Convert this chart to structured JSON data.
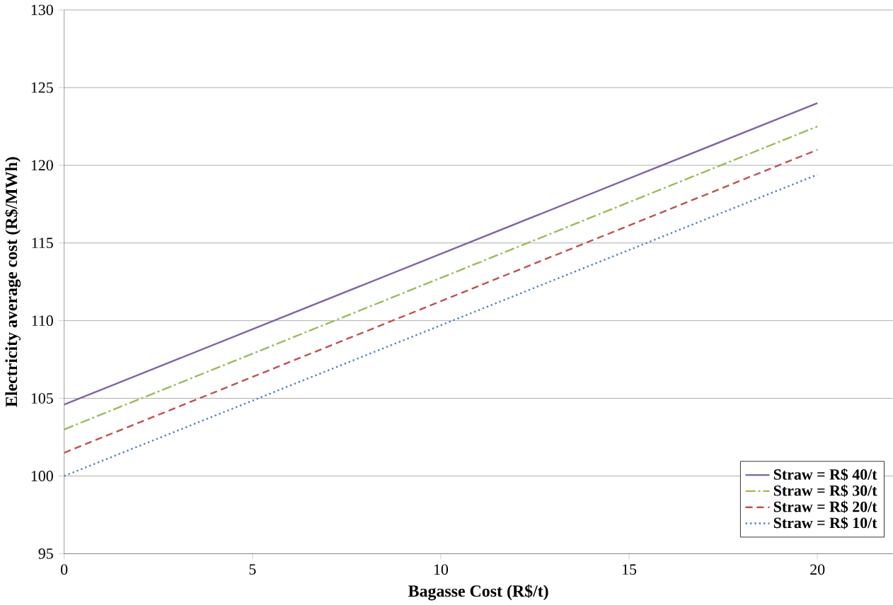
{
  "chart_data": {
    "type": "line",
    "xlabel": "Bagasse Cost (R$/t)",
    "ylabel": "Electricity average cost  (R$/MWh)",
    "x": [
      0,
      20
    ],
    "series": [
      {
        "name": "Straw = R$ 40/t",
        "color": "#8064a2",
        "line_style": "solid",
        "values": [
          104.6,
          124.0
        ]
      },
      {
        "name": "Straw = R$ 30/t",
        "color": "#9bbb59",
        "line_style": "dashdot",
        "values": [
          103.0,
          122.5
        ]
      },
      {
        "name": "Straw = R$ 20/t",
        "color": "#c0504d",
        "line_style": "dashed",
        "values": [
          101.5,
          121.0
        ]
      },
      {
        "name": "Straw = R$ 10/t",
        "color": "#4f81bd",
        "line_style": "dotted",
        "values": [
          100.0,
          119.4
        ]
      }
    ],
    "xlim": [
      0,
      22
    ],
    "xticks": [
      0,
      5,
      10,
      15,
      20
    ],
    "ylim": [
      95,
      130
    ],
    "yticks": [
      95,
      100,
      105,
      110,
      115,
      120,
      125,
      130
    ],
    "grid": "y",
    "legend": "bottom right",
    "marker": "none"
  }
}
